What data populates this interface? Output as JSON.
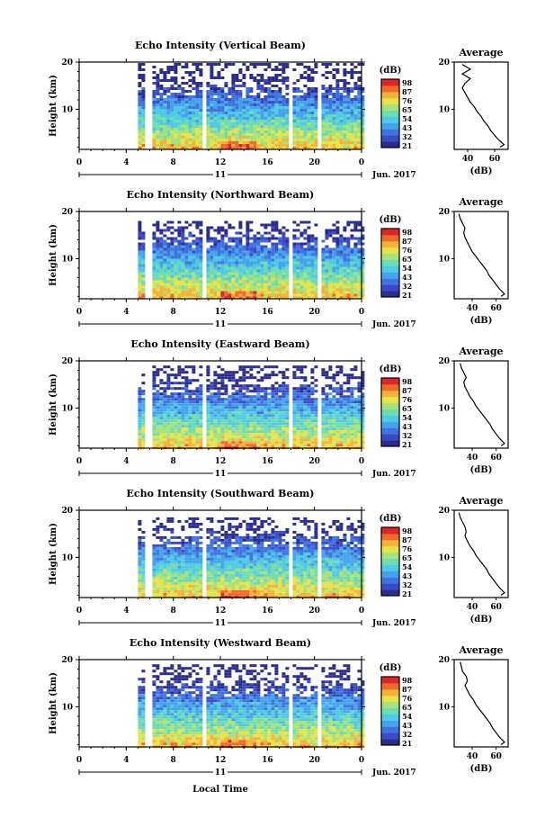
{
  "colors": {
    "colormap": [
      "#2b2d8e",
      "#3b4bc6",
      "#3f73e0",
      "#45a3ec",
      "#4fc9e4",
      "#6ddcb2",
      "#a8e07a",
      "#e6e34a",
      "#f5b23a",
      "#ee6a2c",
      "#d9272c"
    ],
    "line": "#000000",
    "background": "#ffffff"
  },
  "x_axis": {
    "ticks": [
      "0",
      "4",
      "8",
      "12",
      "16",
      "20",
      "0"
    ],
    "date_label": "11",
    "month_label": "Jun. 2017",
    "label": "Local Time"
  },
  "y_axis": {
    "label": "Height (km)",
    "ticks": [
      "10",
      "20"
    ]
  },
  "colorbar": {
    "unit": "(dB)",
    "ticks": [
      "21",
      "32",
      "43",
      "54",
      "65",
      "76",
      "87",
      "98"
    ]
  },
  "average_panel": {
    "title": "Average",
    "xlabel": "(dB)"
  },
  "chart_data": [
    {
      "type": "heatmap",
      "title": "Echo Intensity (Vertical Beam)",
      "x": "local time (h)",
      "xlim": [
        0,
        24
      ],
      "ylim": [
        1.5,
        20
      ],
      "data_start_hour": 5,
      "data_gaps_hours": [
        [
          5.6,
          6.0
        ],
        [
          10.4,
          10.8
        ],
        [
          17.6,
          18.0
        ],
        [
          20.0,
          20.4
        ]
      ],
      "echo_top_km": 19.8,
      "ticks_printed": [
        "32",
        "43",
        "54",
        "65",
        "76",
        "87",
        "98",
        "21"
      ],
      "average_profile": {
        "xticks": [
          "40",
          "60"
        ],
        "xlim": [
          30,
          70
        ],
        "height_km": [
          19.5,
          18.5,
          17.5,
          16.5,
          15.5,
          14.5,
          13.5,
          12.5,
          11.5,
          10.5,
          9.5,
          8.5,
          7.5,
          6.5,
          5.5,
          4.5,
          3.5,
          2.5,
          2.0
        ],
        "db": [
          36,
          42,
          36,
          42,
          38,
          36,
          38,
          40,
          42,
          45,
          47,
          50,
          52,
          55,
          57,
          60,
          63,
          67,
          64
        ]
      }
    },
    {
      "type": "heatmap",
      "title": "Echo Intensity (Northward Beam)",
      "x": "local time (h)",
      "xlim": [
        0,
        24
      ],
      "ylim": [
        1.5,
        20
      ],
      "data_start_hour": 5,
      "data_gaps_hours": [
        [
          5.6,
          6.0
        ],
        [
          10.4,
          10.8
        ],
        [
          17.6,
          18.0
        ],
        [
          20.0,
          20.4
        ]
      ],
      "echo_top_km": 18.0,
      "ticks_printed": [
        "98",
        "87",
        "76",
        "65",
        "54",
        "43",
        "32",
        "21"
      ],
      "average_profile": {
        "xticks": [
          "40",
          "60"
        ],
        "xlim": [
          25,
          70
        ],
        "height_km": [
          19.5,
          18.5,
          17.5,
          16.5,
          15.5,
          14.5,
          13.5,
          12.5,
          11.5,
          10.5,
          9.5,
          8.5,
          7.5,
          6.5,
          5.5,
          4.5,
          3.5,
          2.5,
          2.0
        ],
        "db": [
          29,
          30,
          32,
          34,
          33,
          34,
          36,
          38,
          40,
          43,
          46,
          49,
          52,
          54,
          57,
          60,
          63,
          67,
          64
        ]
      }
    },
    {
      "type": "heatmap",
      "title": "Echo Intensity (Eastward Beam)",
      "x": "local time (h)",
      "xlim": [
        0,
        24
      ],
      "ylim": [
        1.5,
        20
      ],
      "data_start_hour": 5,
      "data_gaps_hours": [
        [
          5.6,
          6.0
        ],
        [
          10.4,
          10.8
        ],
        [
          17.6,
          18.0
        ],
        [
          20.0,
          20.4
        ]
      ],
      "echo_top_km": 19.0,
      "ticks_printed": [
        "98",
        "87",
        "76",
        "65",
        "54",
        "43",
        "32",
        "21"
      ],
      "average_profile": {
        "xticks": [
          "40",
          "60"
        ],
        "xlim": [
          25,
          70
        ],
        "height_km": [
          19.5,
          18.5,
          17.5,
          16.5,
          15.5,
          14.5,
          13.5,
          12.5,
          11.5,
          10.5,
          9.5,
          8.5,
          7.5,
          6.5,
          5.5,
          4.5,
          3.5,
          2.5,
          2.0
        ],
        "db": [
          30,
          31,
          33,
          35,
          33,
          34,
          36,
          38,
          41,
          43,
          46,
          49,
          52,
          55,
          57,
          60,
          63,
          67,
          64
        ]
      }
    },
    {
      "type": "heatmap",
      "title": "Echo Intensity (Southward Beam)",
      "x": "local time (h)",
      "xlim": [
        0,
        24
      ],
      "ylim": [
        1.5,
        20
      ],
      "data_start_hour": 5,
      "data_gaps_hours": [
        [
          5.6,
          6.0
        ],
        [
          10.4,
          10.8
        ],
        [
          17.6,
          18.0
        ],
        [
          20.0,
          20.4
        ]
      ],
      "echo_top_km": 18.5,
      "ticks_printed": [
        "98",
        "87",
        "76",
        "65",
        "54",
        "43",
        "32",
        "21"
      ],
      "average_profile": {
        "xticks": [
          "40",
          "60"
        ],
        "xlim": [
          25,
          70
        ],
        "height_km": [
          19.5,
          18.5,
          17.5,
          16.5,
          15.5,
          14.5,
          13.5,
          12.5,
          11.5,
          10.5,
          9.5,
          8.5,
          7.5,
          6.5,
          5.5,
          4.5,
          3.5,
          2.5,
          2.0
        ],
        "db": [
          29,
          30,
          32,
          34,
          35,
          34,
          36,
          38,
          41,
          43,
          46,
          49,
          52,
          54,
          57,
          60,
          63,
          67,
          64
        ]
      }
    },
    {
      "type": "heatmap",
      "title": "Echo Intensity (Westward Beam)",
      "x": "local time (h)",
      "xlim": [
        0,
        24
      ],
      "ylim": [
        1.5,
        20
      ],
      "data_start_hour": 5,
      "data_gaps_hours": [
        [
          5.6,
          6.0
        ],
        [
          10.4,
          10.8
        ],
        [
          17.6,
          18.0
        ],
        [
          20.0,
          20.4
        ]
      ],
      "echo_top_km": 19.0,
      "ticks_printed": [
        "98",
        "87",
        "76",
        "65",
        "54",
        "43",
        "32",
        "21"
      ],
      "average_profile": {
        "xticks": [
          "40",
          "60"
        ],
        "xlim": [
          25,
          70
        ],
        "height_km": [
          19.5,
          18.5,
          17.5,
          16.5,
          15.5,
          14.5,
          13.5,
          12.5,
          11.5,
          10.5,
          9.5,
          8.5,
          7.5,
          6.5,
          5.5,
          4.5,
          3.5,
          2.5,
          2.0
        ],
        "db": [
          30,
          31,
          32,
          35,
          36,
          34,
          36,
          38,
          41,
          43,
          46,
          49,
          52,
          55,
          57,
          60,
          63,
          67,
          64
        ]
      }
    }
  ]
}
